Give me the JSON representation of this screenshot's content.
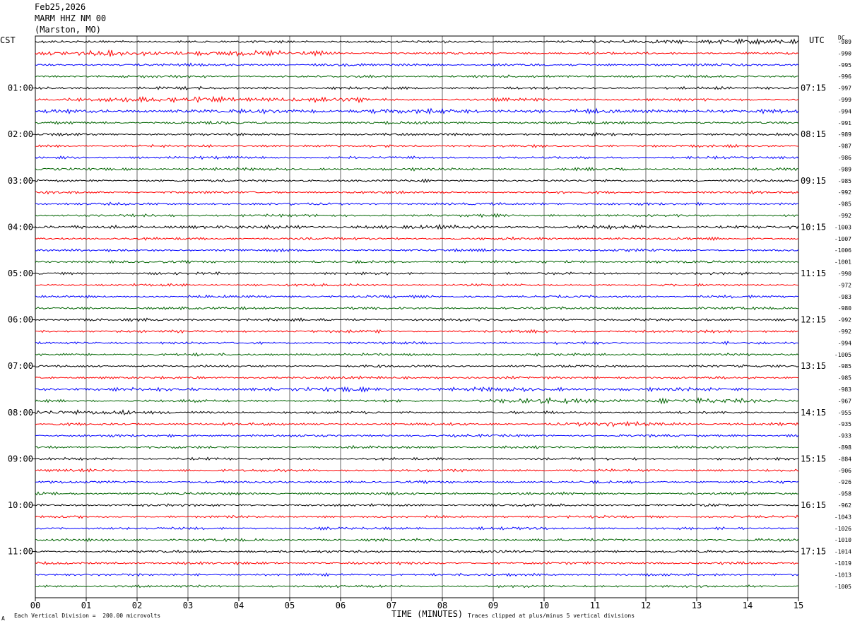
{
  "header": {
    "date": "Feb25,2026",
    "station": "MARM HHZ NM 00",
    "location": "(Marston, MO)"
  },
  "left_zone": "CST",
  "right_zone": "UTC",
  "dc_label": "DC",
  "footer": {
    "scale_note": "Each Vertical Division =  200.00 microvolts",
    "clip_note": "Traces clipped at plus/minus 5 vertical divisions",
    "corner_mark": "A"
  },
  "chart_data": {
    "type": "line",
    "xlabel": "TIME (MINUTES)",
    "xlim": [
      0,
      15
    ],
    "x_ticks": [
      "00",
      "01",
      "02",
      "03",
      "04",
      "05",
      "06",
      "07",
      "08",
      "09",
      "10",
      "11",
      "12",
      "13",
      "14",
      "15"
    ],
    "line_colors": [
      "#000000",
      "#ff0000",
      "#0000ff",
      "#006400"
    ],
    "lines_per_hour": 4,
    "left_time_labels": [
      "01:00",
      "02:00",
      "03:00",
      "04:00",
      "05:00",
      "06:00",
      "07:00",
      "08:00",
      "09:00",
      "10:00",
      "11:00"
    ],
    "right_time_labels": [
      "07:15",
      "08:15",
      "09:15",
      "10:15",
      "11:15",
      "12:15",
      "13:15",
      "14:15",
      "15:15",
      "16:15",
      "17:15"
    ],
    "dc_offsets": [
      -989,
      -990,
      -995,
      -996,
      -997,
      -999,
      -994,
      -991,
      -989,
      -987,
      -986,
      -989,
      -985,
      -992,
      -985,
      -992,
      -1003,
      -1007,
      -1006,
      -1001,
      -990,
      -972,
      -983,
      -980,
      -992,
      -992,
      -994,
      -1005,
      -985,
      -985,
      -983,
      -967,
      -955,
      -935,
      -933,
      -898,
      -884,
      -906,
      -926,
      -958,
      -962,
      -1043,
      -1026,
      -1010,
      -1014,
      -1019,
      -1013,
      -1005
    ],
    "bursts": [
      {
        "line": 0,
        "start_min": 11.5,
        "end_min": 15.0,
        "level": 2.2
      },
      {
        "line": 1,
        "start_min": 0.0,
        "end_min": 6.0,
        "level": 2.4
      },
      {
        "line": 5,
        "start_min": 0.5,
        "end_min": 6.5,
        "level": 2.4
      },
      {
        "line": 6,
        "start_min": 0.0,
        "end_min": 15.0,
        "level": 1.8
      },
      {
        "line": 16,
        "start_min": 0.0,
        "end_min": 15.0,
        "level": 1.5
      },
      {
        "line": 30,
        "start_min": 0.0,
        "end_min": 15.0,
        "level": 1.6
      },
      {
        "line": 31,
        "start_min": 8.5,
        "end_min": 15.0,
        "level": 2.2
      },
      {
        "line": 32,
        "start_min": 0.0,
        "end_min": 2.0,
        "level": 3.0
      },
      {
        "line": 33,
        "start_min": 10.0,
        "end_min": 13.0,
        "level": 1.8
      }
    ]
  }
}
